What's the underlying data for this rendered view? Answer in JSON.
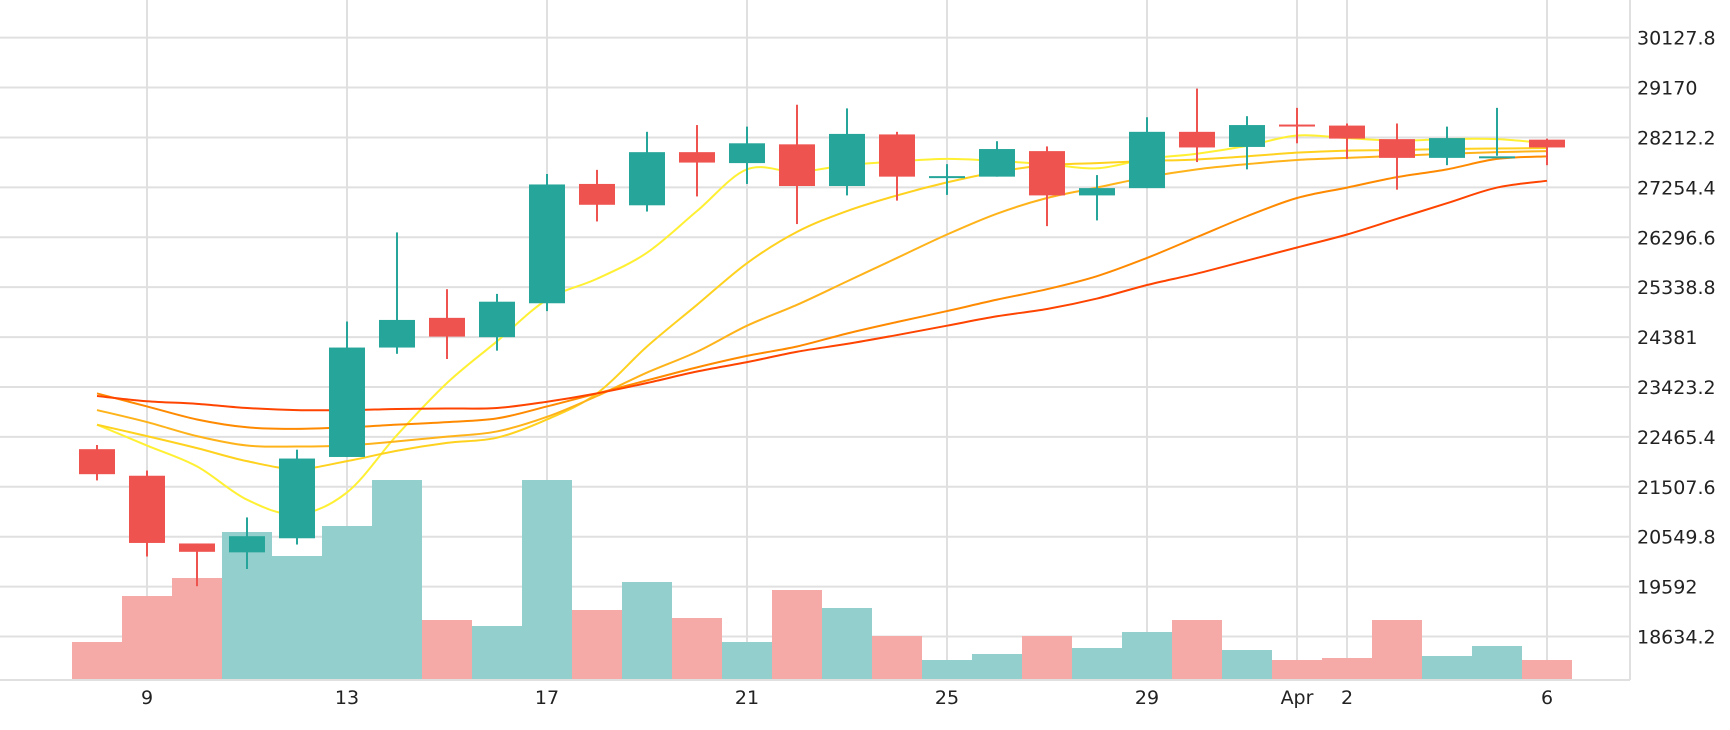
{
  "chart_data": {
    "type": "candlestick",
    "x_ticks": [
      {
        "label": "9",
        "day": 9
      },
      {
        "label": "13",
        "day": 13
      },
      {
        "label": "17",
        "day": 17
      },
      {
        "label": "21",
        "day": 21
      },
      {
        "label": "25",
        "day": 25
      },
      {
        "label": "29",
        "day": 29
      },
      {
        "label": "Apr",
        "day": 32
      },
      {
        "label": "2",
        "day": 33
      },
      {
        "label": "6",
        "day": 37
      }
    ],
    "y_ticks": [
      18634.2,
      19592,
      20549.8,
      21507.6,
      22465.4,
      23423.2,
      24381,
      25338.8,
      26296.6,
      27254.4,
      28212.2,
      29170,
      30127.8
    ],
    "ylim": [
      17800,
      30850
    ],
    "candles": [
      {
        "day": 8,
        "open": 22230,
        "high": 22310,
        "low": 21630,
        "close": 21750
      },
      {
        "day": 9,
        "open": 21720,
        "high": 21820,
        "low": 20170,
        "close": 20430
      },
      {
        "day": 10,
        "open": 20420,
        "high": 20420,
        "low": 19600,
        "close": 20260
      },
      {
        "day": 11,
        "open": 20250,
        "high": 20920,
        "low": 19930,
        "close": 20560
      },
      {
        "day": 12,
        "open": 20520,
        "high": 22220,
        "low": 20400,
        "close": 22050
      },
      {
        "day": 13,
        "open": 22080,
        "high": 24680,
        "low": 22080,
        "close": 24180
      },
      {
        "day": 14,
        "open": 24180,
        "high": 26390,
        "low": 24060,
        "close": 24710
      },
      {
        "day": 15,
        "open": 24750,
        "high": 25300,
        "low": 23960,
        "close": 24390
      },
      {
        "day": 16,
        "open": 24380,
        "high": 25210,
        "low": 24120,
        "close": 25060
      },
      {
        "day": 17,
        "open": 25030,
        "high": 27510,
        "low": 24880,
        "close": 27310
      },
      {
        "day": 18,
        "open": 27320,
        "high": 27590,
        "low": 26600,
        "close": 26920
      },
      {
        "day": 19,
        "open": 26910,
        "high": 28320,
        "low": 26790,
        "close": 27930
      },
      {
        "day": 20,
        "open": 27930,
        "high": 28450,
        "low": 27080,
        "close": 27730
      },
      {
        "day": 21,
        "open": 27720,
        "high": 28420,
        "low": 27320,
        "close": 28100
      },
      {
        "day": 22,
        "open": 28080,
        "high": 28840,
        "low": 26550,
        "close": 27280
      },
      {
        "day": 23,
        "open": 27280,
        "high": 28770,
        "low": 27100,
        "close": 28280
      },
      {
        "day": 24,
        "open": 28270,
        "high": 28320,
        "low": 27000,
        "close": 27460
      },
      {
        "day": 25,
        "open": 27450,
        "high": 27700,
        "low": 27110,
        "close": 27470
      },
      {
        "day": 26,
        "open": 27460,
        "high": 28140,
        "low": 27460,
        "close": 27990
      },
      {
        "day": 27,
        "open": 27950,
        "high": 28040,
        "low": 26510,
        "close": 27100
      },
      {
        "day": 28,
        "open": 27100,
        "high": 27490,
        "low": 26620,
        "close": 27240
      },
      {
        "day": 29,
        "open": 27240,
        "high": 28600,
        "low": 27240,
        "close": 28320
      },
      {
        "day": 30,
        "open": 28320,
        "high": 29150,
        "low": 27740,
        "close": 28020
      },
      {
        "day": 31,
        "open": 28030,
        "high": 28620,
        "low": 27600,
        "close": 28450
      },
      {
        "day": 32,
        "open": 28460,
        "high": 28780,
        "low": 28100,
        "close": 28440
      },
      {
        "day": 33,
        "open": 28440,
        "high": 28480,
        "low": 27800,
        "close": 28190
      },
      {
        "day": 34,
        "open": 28180,
        "high": 28480,
        "low": 27210,
        "close": 27820
      },
      {
        "day": 35,
        "open": 27820,
        "high": 28420,
        "low": 27680,
        "close": 28200
      },
      {
        "day": 36,
        "open": 27850,
        "high": 28780,
        "low": 27860,
        "close": 27850
      },
      {
        "day": 37,
        "open": 28170,
        "high": 28190,
        "low": 27680,
        "close": 28020
      }
    ],
    "volumes": [
      {
        "day": 8,
        "value": 0.19,
        "dir": "down"
      },
      {
        "day": 9,
        "value": 0.42,
        "dir": "down"
      },
      {
        "day": 10,
        "value": 0.51,
        "dir": "down"
      },
      {
        "day": 11,
        "value": 0.74,
        "dir": "up"
      },
      {
        "day": 12,
        "value": 0.62,
        "dir": "up"
      },
      {
        "day": 13,
        "value": 0.77,
        "dir": "up"
      },
      {
        "day": 14,
        "value": 1.0,
        "dir": "up"
      },
      {
        "day": 15,
        "value": 0.3,
        "dir": "down"
      },
      {
        "day": 16,
        "value": 0.27,
        "dir": "up"
      },
      {
        "day": 17,
        "value": 1.0,
        "dir": "up"
      },
      {
        "day": 18,
        "value": 0.35,
        "dir": "down"
      },
      {
        "day": 19,
        "value": 0.49,
        "dir": "up"
      },
      {
        "day": 20,
        "value": 0.31,
        "dir": "down"
      },
      {
        "day": 21,
        "value": 0.19,
        "dir": "up"
      },
      {
        "day": 22,
        "value": 0.45,
        "dir": "down"
      },
      {
        "day": 23,
        "value": 0.36,
        "dir": "up"
      },
      {
        "day": 24,
        "value": 0.22,
        "dir": "down"
      },
      {
        "day": 25,
        "value": 0.1,
        "dir": "up"
      },
      {
        "day": 26,
        "value": 0.13,
        "dir": "up"
      },
      {
        "day": 27,
        "value": 0.22,
        "dir": "down"
      },
      {
        "day": 28,
        "value": 0.16,
        "dir": "up"
      },
      {
        "day": 29,
        "value": 0.24,
        "dir": "up"
      },
      {
        "day": 30,
        "value": 0.3,
        "dir": "down"
      },
      {
        "day": 31,
        "value": 0.15,
        "dir": "up"
      },
      {
        "day": 32,
        "value": 0.1,
        "dir": "down"
      },
      {
        "day": 33,
        "value": 0.11,
        "dir": "down"
      },
      {
        "day": 34,
        "value": 0.3,
        "dir": "down"
      },
      {
        "day": 35,
        "value": 0.12,
        "dir": "up"
      },
      {
        "day": 36,
        "value": 0.17,
        "dir": "up"
      },
      {
        "day": 37,
        "value": 0.1,
        "dir": "down"
      }
    ],
    "moving_averages": [
      {
        "color": "#fff034",
        "points": [
          [
            8,
            22700
          ],
          [
            9,
            22300
          ],
          [
            10,
            21900
          ],
          [
            11,
            21260
          ],
          [
            12,
            20980
          ],
          [
            13,
            21400
          ],
          [
            14,
            22500
          ],
          [
            15,
            23500
          ],
          [
            16,
            24300
          ],
          [
            17,
            25100
          ],
          [
            18,
            25500
          ],
          [
            19,
            26000
          ],
          [
            20,
            26800
          ],
          [
            21,
            27600
          ],
          [
            22,
            27550
          ],
          [
            23,
            27680
          ],
          [
            24,
            27750
          ],
          [
            25,
            27800
          ],
          [
            26,
            27760
          ],
          [
            27,
            27700
          ],
          [
            28,
            27620
          ],
          [
            29,
            27800
          ],
          [
            30,
            27900
          ],
          [
            31,
            28050
          ],
          [
            32,
            28250
          ],
          [
            33,
            28200
          ],
          [
            34,
            28150
          ],
          [
            35,
            28180
          ],
          [
            36,
            28180
          ],
          [
            37,
            28100
          ]
        ]
      },
      {
        "color": "#ffd21f",
        "points": [
          [
            8,
            22700
          ],
          [
            9,
            22480
          ],
          [
            10,
            22250
          ],
          [
            11,
            22000
          ],
          [
            12,
            21850
          ],
          [
            13,
            22000
          ],
          [
            14,
            22200
          ],
          [
            15,
            22350
          ],
          [
            16,
            22450
          ],
          [
            17,
            22800
          ],
          [
            18,
            23300
          ],
          [
            19,
            24200
          ],
          [
            20,
            25000
          ],
          [
            21,
            25800
          ],
          [
            22,
            26400
          ],
          [
            23,
            26800
          ],
          [
            24,
            27100
          ],
          [
            25,
            27350
          ],
          [
            26,
            27550
          ],
          [
            27,
            27680
          ],
          [
            28,
            27720
          ],
          [
            29,
            27760
          ],
          [
            30,
            27790
          ],
          [
            31,
            27850
          ],
          [
            32,
            27920
          ],
          [
            33,
            27960
          ],
          [
            34,
            27970
          ],
          [
            35,
            27990
          ],
          [
            36,
            28000
          ],
          [
            37,
            28010
          ]
        ]
      },
      {
        "color": "#ffb31a",
        "points": [
          [
            8,
            22980
          ],
          [
            9,
            22750
          ],
          [
            10,
            22480
          ],
          [
            11,
            22300
          ],
          [
            12,
            22280
          ],
          [
            13,
            22300
          ],
          [
            14,
            22380
          ],
          [
            15,
            22470
          ],
          [
            16,
            22570
          ],
          [
            17,
            22850
          ],
          [
            18,
            23250
          ],
          [
            19,
            23700
          ],
          [
            20,
            24100
          ],
          [
            21,
            24600
          ],
          [
            22,
            25000
          ],
          [
            23,
            25450
          ],
          [
            24,
            25900
          ],
          [
            25,
            26350
          ],
          [
            26,
            26750
          ],
          [
            27,
            27050
          ],
          [
            28,
            27250
          ],
          [
            29,
            27450
          ],
          [
            30,
            27600
          ],
          [
            31,
            27700
          ],
          [
            32,
            27780
          ],
          [
            33,
            27820
          ],
          [
            34,
            27860
          ],
          [
            35,
            27900
          ],
          [
            36,
            27930
          ],
          [
            37,
            27950
          ]
        ]
      },
      {
        "color": "#ff8a00",
        "points": [
          [
            8,
            23300
          ],
          [
            9,
            23050
          ],
          [
            10,
            22800
          ],
          [
            11,
            22650
          ],
          [
            12,
            22620
          ],
          [
            13,
            22650
          ],
          [
            14,
            22700
          ],
          [
            15,
            22750
          ],
          [
            16,
            22820
          ],
          [
            17,
            23050
          ],
          [
            18,
            23300
          ],
          [
            19,
            23550
          ],
          [
            20,
            23800
          ],
          [
            21,
            24020
          ],
          [
            22,
            24200
          ],
          [
            23,
            24450
          ],
          [
            24,
            24670
          ],
          [
            25,
            24880
          ],
          [
            26,
            25100
          ],
          [
            27,
            25300
          ],
          [
            28,
            25550
          ],
          [
            29,
            25900
          ],
          [
            30,
            26300
          ],
          [
            31,
            26700
          ],
          [
            32,
            27050
          ],
          [
            33,
            27250
          ],
          [
            34,
            27450
          ],
          [
            35,
            27600
          ],
          [
            36,
            27800
          ],
          [
            37,
            27850
          ]
        ]
      },
      {
        "color": "#ff4400",
        "points": [
          [
            8,
            23250
          ],
          [
            9,
            23150
          ],
          [
            10,
            23100
          ],
          [
            11,
            23020
          ],
          [
            12,
            22980
          ],
          [
            13,
            22980
          ],
          [
            14,
            23000
          ],
          [
            15,
            23010
          ],
          [
            16,
            23020
          ],
          [
            17,
            23140
          ],
          [
            18,
            23300
          ],
          [
            19,
            23500
          ],
          [
            20,
            23720
          ],
          [
            21,
            23900
          ],
          [
            22,
            24100
          ],
          [
            23,
            24250
          ],
          [
            24,
            24420
          ],
          [
            25,
            24600
          ],
          [
            26,
            24780
          ],
          [
            27,
            24920
          ],
          [
            28,
            25120
          ],
          [
            29,
            25380
          ],
          [
            30,
            25600
          ],
          [
            31,
            25850
          ],
          [
            32,
            26100
          ],
          [
            33,
            26350
          ],
          [
            34,
            26650
          ],
          [
            35,
            26950
          ],
          [
            36,
            27250
          ],
          [
            37,
            27380
          ]
        ]
      }
    ],
    "colors": {
      "up": "#26a69a",
      "down": "#ef5350",
      "up_volume": "#93cfcc",
      "down_volume": "#f5aaa8",
      "grid": "#e0e0e0"
    }
  }
}
